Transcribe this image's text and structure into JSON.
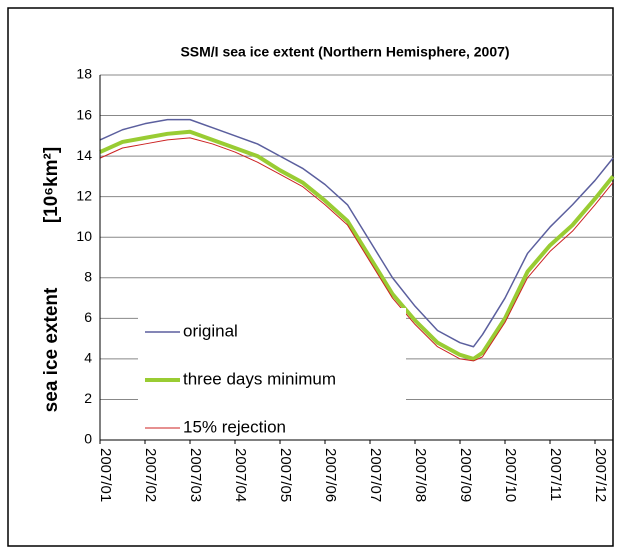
{
  "chart_data": {
    "type": "line",
    "title": "SSM/I sea ice extent (Northern Hemisphere, 2007)",
    "ylabel": "sea ice extent",
    "yunit": "[10⁶km²]",
    "x": [
      1.0,
      1.5,
      2.0,
      2.5,
      3.0,
      3.5,
      4.0,
      4.5,
      5.0,
      5.5,
      6.0,
      6.5,
      7.0,
      7.5,
      8.0,
      8.5,
      9.0,
      9.3,
      9.5,
      10.0,
      10.5,
      11.0,
      11.5,
      12.0,
      12.4
    ],
    "series": [
      {
        "name": "original",
        "color": "#5b5f9e",
        "width": 1.5,
        "values": [
          14.8,
          15.3,
          15.6,
          15.8,
          15.8,
          15.4,
          15.0,
          14.6,
          14.0,
          13.4,
          12.6,
          11.6,
          9.8,
          8.0,
          6.6,
          5.4,
          4.8,
          4.6,
          5.2,
          7.0,
          9.2,
          10.5,
          11.6,
          12.8,
          13.9
        ]
      },
      {
        "name": "three days minimum",
        "color": "#99cc33",
        "width": 4,
        "values": [
          14.2,
          14.7,
          14.9,
          15.1,
          15.2,
          14.8,
          14.4,
          14.0,
          13.3,
          12.7,
          11.8,
          10.8,
          9.0,
          7.2,
          5.9,
          4.8,
          4.2,
          4.0,
          4.3,
          6.0,
          8.3,
          9.6,
          10.6,
          11.9,
          13.0
        ]
      },
      {
        "name": "15% rejection",
        "color": "#cc2222",
        "width": 1,
        "values": [
          13.9,
          14.4,
          14.6,
          14.8,
          14.9,
          14.6,
          14.2,
          13.7,
          13.1,
          12.5,
          11.6,
          10.6,
          8.8,
          7.0,
          5.7,
          4.6,
          4.0,
          3.9,
          4.1,
          5.8,
          8.0,
          9.3,
          10.3,
          11.6,
          12.7
        ]
      }
    ],
    "xlim": [
      1,
      12.4
    ],
    "xticks": [
      {
        "value": 1,
        "label": "2007/01"
      },
      {
        "value": 2,
        "label": "2007/02"
      },
      {
        "value": 3,
        "label": "2007/03"
      },
      {
        "value": 4,
        "label": "2007/04"
      },
      {
        "value": 5,
        "label": "2007/05"
      },
      {
        "value": 6,
        "label": "2007/06"
      },
      {
        "value": 7,
        "label": "2007/07"
      },
      {
        "value": 8,
        "label": "2007/08"
      },
      {
        "value": 9,
        "label": "2007/09"
      },
      {
        "value": 10,
        "label": "2007/10"
      },
      {
        "value": 11,
        "label": "2007/11"
      },
      {
        "value": 12,
        "label": "2007/12"
      }
    ],
    "ylim": [
      0,
      18
    ],
    "yticks": [
      0,
      2,
      4,
      6,
      8,
      10,
      12,
      14,
      16,
      18
    ],
    "grid": true
  }
}
